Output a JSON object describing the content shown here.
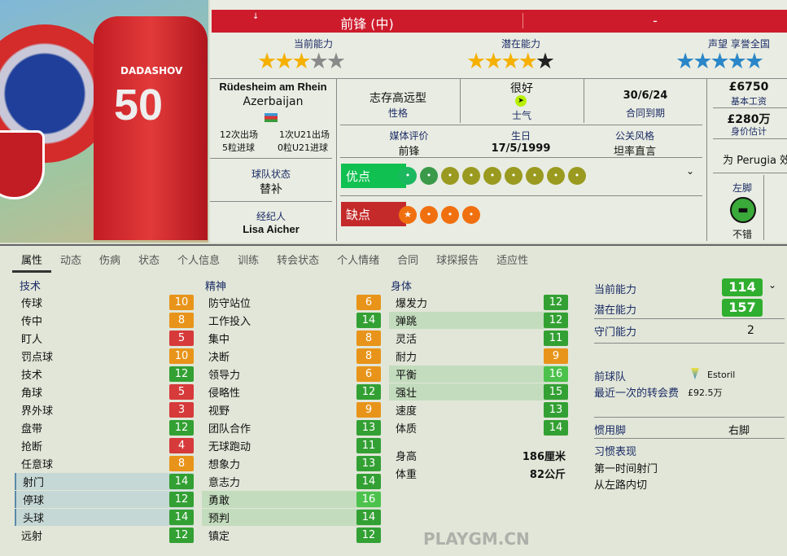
{
  "photo": {
    "jersey_name": "DADASHOV",
    "jersey_number": "50",
    "crest": "PERUGIA",
    "logo": "UEFA"
  },
  "header": {
    "position": "前锋 (中)",
    "secondary": "-",
    "arrow": "↓"
  },
  "ratings": {
    "current_label": "当前能力",
    "current_stars": 3,
    "potential_label": "潜在能力",
    "potential_stars": 4,
    "reputation_label": "声望  享誉全国",
    "reputation_stars": 4.5
  },
  "info": {
    "birthplace": "Rüdesheim am Rhein",
    "nation": "Azerbaijan",
    "caps": "12次出场",
    "goals": "5粒进球",
    "u21_caps": "1次U21出场",
    "u21_goals": "0粒U21进球",
    "squad_status_label": "球队状态",
    "squad_status": "替补",
    "agent_label": "经纪人",
    "agent": "Lisa Aicher"
  },
  "personality": {
    "value": "志存高远型",
    "label": "性格"
  },
  "morale": {
    "value": "很好",
    "label": "士气"
  },
  "contract": {
    "value": "30/6/24",
    "label": "合同到期"
  },
  "media": {
    "label": "媒体评价",
    "value": "前锋"
  },
  "birthday": {
    "label": "生日",
    "value": "17/5/1999"
  },
  "pr_style": {
    "label": "公关风格",
    "value": "坦率直言"
  },
  "wage": {
    "value": "£6750",
    "label": "基本工资"
  },
  "value": {
    "value": "£280万",
    "label": "身价估计"
  },
  "club_line": "为 Perugia 效力",
  "foot": {
    "label": "左脚",
    "value": "不错"
  },
  "strengths": {
    "label": "优点",
    "icons": [
      "tactics",
      "defence",
      "progress",
      "mental",
      "link",
      "flag",
      "shooting",
      "target",
      "pitch"
    ]
  },
  "weaknesses": {
    "label": "缺点",
    "icons": [
      "star",
      "handshake",
      "head",
      "flask"
    ]
  },
  "tabs": [
    "属性",
    "动态",
    "伤病",
    "状态",
    "个人信息",
    "训练",
    "转会状态",
    "个人情绪",
    "合同",
    "球探报告",
    "适应性"
  ],
  "attributes": {
    "technical": {
      "label": "技术",
      "items": [
        [
          "传球",
          10
        ],
        [
          "传中",
          8
        ],
        [
          "盯人",
          5
        ],
        [
          "罚点球",
          10
        ],
        [
          "技术",
          12
        ],
        [
          "角球",
          5
        ],
        [
          "界外球",
          3
        ],
        [
          "盘带",
          12
        ],
        [
          "抢断",
          4
        ],
        [
          "任意球",
          8
        ],
        [
          "射门",
          14
        ],
        [
          "停球",
          12
        ],
        [
          "头球",
          14
        ],
        [
          "远射",
          12
        ]
      ]
    },
    "mental": {
      "label": "精神",
      "items": [
        [
          "防守站位",
          6
        ],
        [
          "工作投入",
          14
        ],
        [
          "集中",
          8
        ],
        [
          "决断",
          8
        ],
        [
          "领导力",
          6
        ],
        [
          "侵略性",
          12
        ],
        [
          "视野",
          9
        ],
        [
          "团队合作",
          13
        ],
        [
          "无球跑动",
          11
        ],
        [
          "想象力",
          13
        ],
        [
          "意志力",
          14
        ],
        [
          "勇敢",
          16
        ],
        [
          "预判",
          14
        ],
        [
          "镇定",
          12
        ]
      ]
    },
    "physical": {
      "label": "身体",
      "items": [
        [
          "爆发力",
          12
        ],
        [
          "弹跳",
          12
        ],
        [
          "灵活",
          11
        ],
        [
          "耐力",
          9
        ],
        [
          "平衡",
          16
        ],
        [
          "强壮",
          15
        ],
        [
          "速度",
          13
        ],
        [
          "体质",
          14
        ]
      ]
    }
  },
  "height": {
    "label": "身高",
    "value": "186厘米"
  },
  "weight": {
    "label": "体重",
    "value": "82公斤"
  },
  "side": {
    "ca_label": "当前能力",
    "ca": "114",
    "pa_label": "潜在能力",
    "pa": "157",
    "gk_label": "守门能力",
    "gk": "2",
    "prev_club_label": "前球队",
    "prev_club": "Estoril",
    "fee_label": "最近一次的转会费",
    "fee": "£92.5万",
    "pref_foot_label": "惯用脚",
    "pref_foot": "右脚",
    "traits_label": "习惯表现",
    "traits": [
      "第一时间射门",
      "从左路内切"
    ]
  },
  "watermark": "PLAYGM.CN",
  "colors": {
    "red": "#cd1b2c",
    "green": "#2fae2f",
    "orange": "#e8941a",
    "low": "#d63a3a"
  }
}
